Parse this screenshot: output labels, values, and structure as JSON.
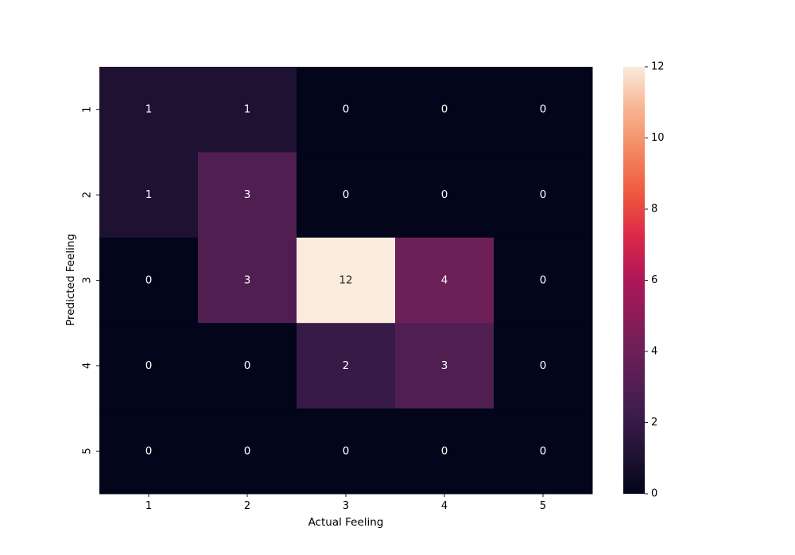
{
  "chart_data": {
    "type": "heatmap",
    "title": "",
    "xlabel": "Actual Feeling",
    "ylabel": "Predicted Feeling",
    "x_categories": [
      "1",
      "2",
      "3",
      "4",
      "5"
    ],
    "y_categories": [
      "1",
      "2",
      "3",
      "4",
      "5"
    ],
    "values": [
      [
        1,
        1,
        0,
        0,
        0
      ],
      [
        1,
        3,
        0,
        0,
        0
      ],
      [
        0,
        3,
        12,
        4,
        0
      ],
      [
        0,
        0,
        2,
        3,
        0
      ],
      [
        0,
        0,
        0,
        0,
        0
      ]
    ],
    "annotated": true,
    "colorbar": {
      "min": 0,
      "max": 12,
      "ticks": [
        "0",
        "2",
        "4",
        "6",
        "8",
        "10",
        "12"
      ]
    },
    "colormap": "rocket",
    "grid": false
  }
}
